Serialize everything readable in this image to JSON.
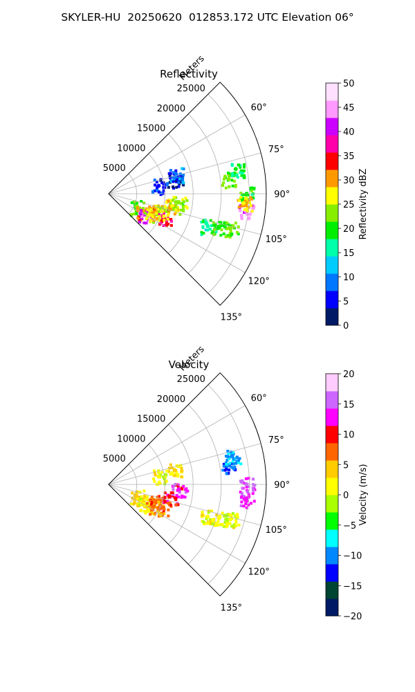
{
  "figure_title": "SKYLER-HU  20250620  012853.172 UTC Elevation 06°",
  "chart_data": [
    {
      "type": "heatmap",
      "title": "Reflectivity",
      "radial_label": "Meters",
      "radial_ticks": [
        "5000",
        "10000",
        "15000",
        "20000",
        "25000"
      ],
      "angle_ticks": [
        "60°",
        "75°",
        "90°",
        "105°",
        "120°",
        "135°"
      ],
      "angle_values": [
        60,
        75,
        90,
        105,
        120,
        135
      ],
      "azimuth_range": [
        45,
        135
      ],
      "range_max": 28000,
      "grid": true,
      "colorbar": {
        "label": "Reflectivity dBZ",
        "ticks": [
          "0",
          "5",
          "10",
          "15",
          "20",
          "25",
          "30",
          "35",
          "40",
          "45",
          "50"
        ],
        "range": [
          0,
          50
        ],
        "colors": [
          "#001a66",
          "#0000ff",
          "#0077ff",
          "#00ccff",
          "#00ffaa",
          "#00ee00",
          "#88ee00",
          "#ffff00",
          "#ff9900",
          "#ff0000",
          "#ff00aa",
          "#cc00ff",
          "#ff99ff",
          "#ffe0ff"
        ]
      },
      "echoes": [
        {
          "azimuth": 114,
          "range": 5500,
          "value": 22
        },
        {
          "azimuth": 117,
          "range": 7000,
          "value": 32
        },
        {
          "azimuth": 119,
          "range": 7500,
          "value": 42
        },
        {
          "azimuth": 116,
          "range": 8500,
          "value": 26
        },
        {
          "azimuth": 111,
          "range": 9000,
          "value": 30
        },
        {
          "azimuth": 113,
          "range": 10500,
          "value": 36
        },
        {
          "azimuth": 108,
          "range": 10000,
          "value": 25
        },
        {
          "azimuth": 101,
          "range": 11500,
          "value": 27
        },
        {
          "azimuth": 97,
          "range": 12500,
          "value": 24
        },
        {
          "azimuth": 83,
          "range": 21500,
          "value": 22
        },
        {
          "azimuth": 79,
          "range": 23000,
          "value": 18
        },
        {
          "azimuth": 90,
          "range": 24500,
          "value": 20
        },
        {
          "azimuth": 97,
          "range": 24500,
          "value": 44
        },
        {
          "azimuth": 94,
          "range": 24000,
          "value": 28
        },
        {
          "azimuth": 108,
          "range": 18500,
          "value": 17
        },
        {
          "azimuth": 106,
          "range": 22500,
          "value": 22
        },
        {
          "azimuth": 107,
          "range": 20500,
          "value": 21
        },
        {
          "azimuth": 78,
          "range": 12000,
          "value": 3
        },
        {
          "azimuth": 81,
          "range": 9000,
          "value": 6
        },
        {
          "azimuth": 74,
          "range": 12500,
          "value": 9
        }
      ]
    },
    {
      "type": "heatmap",
      "title": "Velocity",
      "radial_label": "Meters",
      "radial_ticks": [
        "5000",
        "10000",
        "15000",
        "20000",
        "25000"
      ],
      "angle_ticks": [
        "60°",
        "75°",
        "90°",
        "105°",
        "120°",
        "135°"
      ],
      "angle_values": [
        60,
        75,
        90,
        105,
        120,
        135
      ],
      "azimuth_range": [
        45,
        135
      ],
      "range_max": 28000,
      "grid": true,
      "colorbar": {
        "label": "Velocity (m/s)",
        "ticks": [
          "−20",
          "−15",
          "−10",
          "−5",
          "0",
          "5",
          "10",
          "15",
          "20"
        ],
        "range": [
          -20,
          20
        ],
        "colors": [
          "#001a66",
          "#004433",
          "#0000ff",
          "#0088ff",
          "#00ffff",
          "#00ff00",
          "#aaff00",
          "#ffff00",
          "#ffcc00",
          "#ff6600",
          "#ff0000",
          "#ff00ff",
          "#cc66ff",
          "#ffccff"
        ]
      },
      "echoes": [
        {
          "azimuth": 114,
          "range": 5500,
          "value": 4
        },
        {
          "azimuth": 117,
          "range": 7000,
          "value": 3
        },
        {
          "azimuth": 119,
          "range": 7500,
          "value": 2
        },
        {
          "azimuth": 116,
          "range": 8500,
          "value": 5
        },
        {
          "azimuth": 111,
          "range": 9000,
          "value": 8
        },
        {
          "azimuth": 113,
          "range": 10500,
          "value": 6
        },
        {
          "azimuth": 101,
          "range": 11000,
          "value": 10
        },
        {
          "azimuth": 94,
          "range": 12500,
          "value": 13
        },
        {
          "azimuth": 81,
          "range": 21500,
          "value": -11
        },
        {
          "azimuth": 77,
          "range": 22500,
          "value": -9
        },
        {
          "azimuth": 90,
          "range": 24500,
          "value": 15
        },
        {
          "azimuth": 96,
          "range": 24500,
          "value": 14
        },
        {
          "azimuth": 108,
          "range": 18500,
          "value": 2
        },
        {
          "azimuth": 106,
          "range": 22500,
          "value": 1
        },
        {
          "azimuth": 107,
          "range": 20500,
          "value": 0
        },
        {
          "azimuth": 78,
          "range": 12000,
          "value": 3
        },
        {
          "azimuth": 81,
          "range": 9000,
          "value": 1
        }
      ]
    }
  ]
}
